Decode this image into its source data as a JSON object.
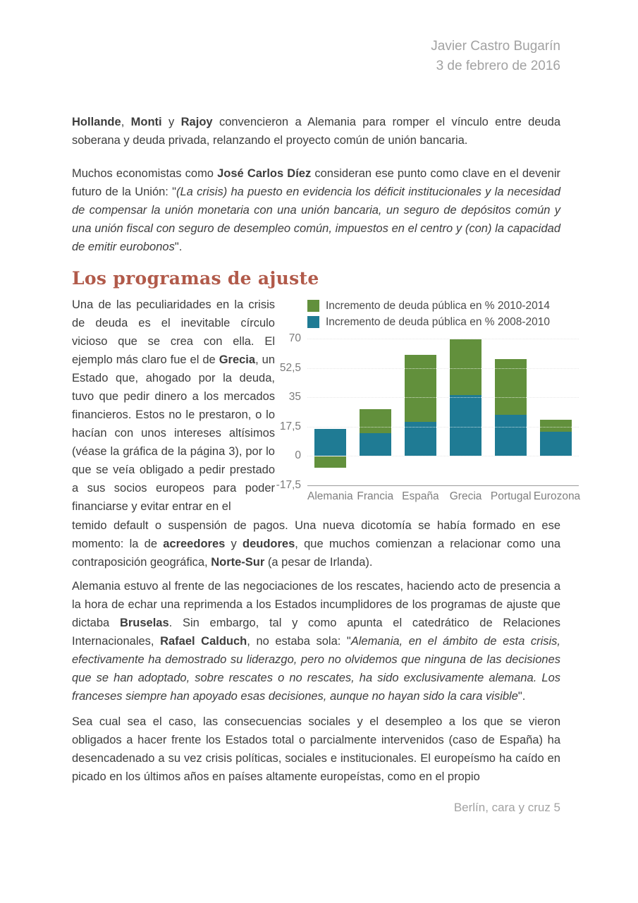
{
  "header": {
    "author": "Javier Castro Bugarín",
    "date": "3 de febrero de 2016"
  },
  "section": {
    "title": "Los programas de ajuste"
  },
  "paragraphs": {
    "p1": [
      {
        "t": "Hollande",
        "b": true
      },
      {
        "t": ", "
      },
      {
        "t": "Monti",
        "b": true
      },
      {
        "t": " y "
      },
      {
        "t": "Rajoy",
        "b": true
      },
      {
        "t": " convencieron a Alemania para romper el vínculo entre deuda soberana y deuda privada, relanzando el proyecto común de unión bancaria."
      }
    ],
    "p2": [
      {
        "t": "Muchos economistas como "
      },
      {
        "t": "José Carlos Díez",
        "b": true
      },
      {
        "t": " consideran ese punto como clave en el devenir futuro de la Unión: \""
      },
      {
        "t": "(La crisis) ha puesto en evidencia los déficit institucionales y la necesidad de compensar la unión monetaria con una unión bancaria, un seguro de depósitos común y una unión fiscal con seguro de desempleo común, impuestos en el centro y (con) la capacidad de emitir eurobonos",
        "i": true
      },
      {
        "t": "\"."
      }
    ],
    "left_column": [
      {
        "t": "Una de las peculiaridades en la crisis de deuda es el inevitable círculo vicioso que se crea con ella. El ejemplo más claro fue el de "
      },
      {
        "t": "Grecia",
        "b": true
      },
      {
        "t": ", un Estado que, ahogado por la deuda, tuvo que pedir dinero a los mercados financieros. Estos no le prestaron, o lo hacían con unos intereses altísimos (véase la gráfica de la página 3), por lo que se veía obligado a pedir prestado a sus socios europeos para poder financiarse y evitar entrar en el"
      }
    ],
    "p3": [
      {
        "t": "temido default o suspensión de pagos. Una nueva dicotomía se había formado en ese momento: la de "
      },
      {
        "t": "acreedores",
        "b": true
      },
      {
        "t": " y "
      },
      {
        "t": "deudores",
        "b": true
      },
      {
        "t": ", que muchos comienzan a relacionar como una contraposición geográfica, "
      },
      {
        "t": "Norte-Sur",
        "b": true
      },
      {
        "t": " (a pesar de Irlanda)."
      }
    ],
    "p4": [
      {
        "t": "Alemania estuvo al frente de las negociaciones de los rescates, haciendo acto de presencia a la hora de echar una reprimenda a los Estados incumplidores de los programas de ajuste que dictaba "
      },
      {
        "t": "Bruselas",
        "b": true
      },
      {
        "t": ". Sin embargo, tal y como apunta el catedrático de Relaciones Internacionales, "
      },
      {
        "t": "Rafael Calduch",
        "b": true
      },
      {
        "t": ", no estaba sola: \""
      },
      {
        "t": "Alemania, en el ámbito de esta crisis, efectivamente ha demostrado su liderazgo, pero no olvidemos que ninguna de las decisiones que se han adoptado, sobre rescates o no rescates, ha sido exclusivamente alemana. Los franceses siempre han apoyado esas decisiones, aunque no hayan sido la cara visible",
        "i": true
      },
      {
        "t": "\"."
      }
    ],
    "p5": [
      {
        "t": "Sea cual sea el caso, las consecuencias sociales y el desempleo a los que se vieron obligados a hacer frente los Estados total o parcialmente intervenidos (caso de España) ha desencadenado a su vez crisis políticas, sociales e institucionales. El europeísmo ha caído en picado en los últimos años en países altamente europeístas, como en el propio"
      }
    ]
  },
  "chart_data": {
    "type": "bar",
    "stacked": true,
    "categories": [
      "Alemania",
      "Francia",
      "España",
      "Grecia",
      "Portugal",
      "Eurozona"
    ],
    "series": [
      {
        "name": "Incremento de deuda pública en % 2010-2014",
        "color": "#62903c",
        "values": [
          -6.5,
          14.5,
          40,
          33,
          33.5,
          7
        ]
      },
      {
        "name": "Incremento de deuda pública en % 2008-2010",
        "color": "#1f7b94",
        "values": [
          16,
          13.5,
          20.5,
          36.5,
          24.5,
          14.5
        ]
      }
    ],
    "ylim": [
      -17.5,
      70
    ],
    "yticks": [
      70,
      52.5,
      35,
      17.5,
      0,
      -17.5
    ],
    "ytick_labels": [
      "70",
      "52,5",
      "35",
      "17,5",
      "0",
      "-17,5"
    ],
    "grid": "horizontal dotted",
    "legend_position": "top-left",
    "title": "",
    "xlabel": "",
    "ylabel": ""
  },
  "footer": {
    "text": "Berlín, cara y cruz 5"
  }
}
